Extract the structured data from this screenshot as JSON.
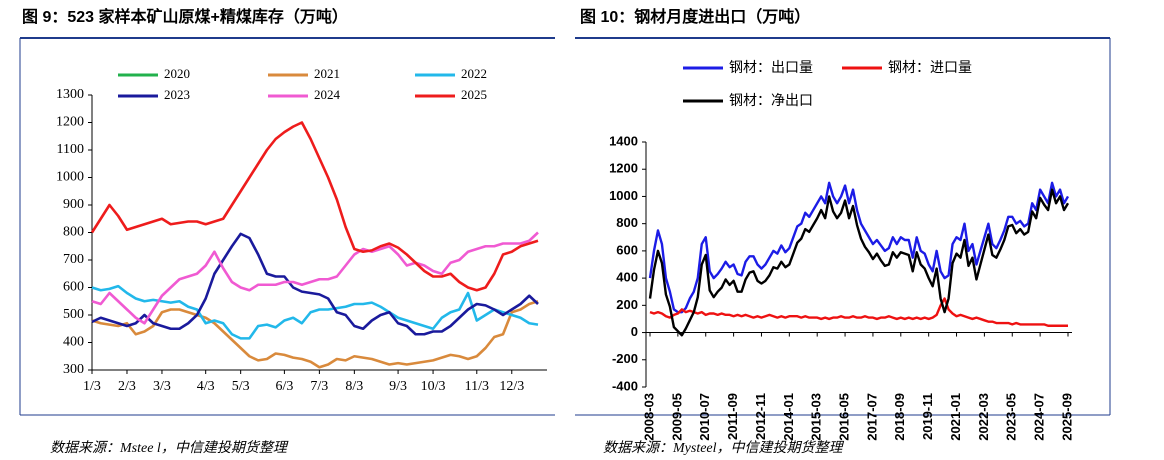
{
  "chart_data": [
    {
      "type": "line",
      "title": "图 9：523 家样本矿山原煤+精煤库存（万吨）",
      "source": "数据来源：Mstee l，中信建投期货整理",
      "categories": [
        "1/3",
        null,
        null,
        null,
        "2/3",
        null,
        null,
        null,
        "3/3",
        null,
        null,
        null,
        null,
        "4/3",
        null,
        null,
        null,
        "5/3",
        null,
        null,
        null,
        null,
        "6/3",
        null,
        null,
        null,
        "7/3",
        null,
        null,
        null,
        "8/3",
        null,
        null,
        null,
        null,
        "9/3",
        null,
        null,
        null,
        "10/3",
        null,
        null,
        null,
        null,
        "11/3",
        null,
        null,
        null,
        "12/3",
        null,
        null,
        null
      ],
      "ylim": [
        300,
        1300
      ],
      "yticks": [
        300,
        400,
        500,
        600,
        700,
        800,
        900,
        1000,
        1100,
        1200,
        1300
      ],
      "series": [
        {
          "name": "2020",
          "color": "#22b14c",
          "values": [
            null,
            null,
            null,
            null,
            null,
            null,
            null,
            null,
            null,
            null,
            null,
            null,
            null,
            null,
            null,
            null,
            null,
            null,
            null,
            null,
            null,
            null,
            null,
            null,
            null,
            null,
            null,
            null,
            null,
            null,
            null,
            null,
            null,
            null,
            null,
            null,
            null,
            null,
            null,
            null,
            null,
            null,
            null,
            null,
            null,
            null,
            null,
            null,
            null,
            null,
            null,
            null
          ]
        },
        {
          "name": "2021",
          "color": "#d98a3c",
          "values": [
            480,
            470,
            465,
            460,
            470,
            430,
            440,
            460,
            510,
            520,
            520,
            510,
            500,
            490,
            470,
            440,
            410,
            380,
            350,
            335,
            340,
            360,
            355,
            345,
            340,
            330,
            310,
            320,
            340,
            335,
            350,
            345,
            340,
            330,
            320,
            325,
            320,
            325,
            330,
            335,
            345,
            355,
            350,
            340,
            350,
            380,
            420,
            430,
            510,
            520,
            540,
            550
          ]
        },
        {
          "name": "2022",
          "color": "#22b8ea",
          "values": [
            600,
            590,
            595,
            605,
            580,
            560,
            550,
            555,
            550,
            545,
            550,
            530,
            520,
            470,
            480,
            470,
            430,
            415,
            415,
            460,
            465,
            455,
            480,
            490,
            470,
            510,
            520,
            520,
            525,
            530,
            540,
            540,
            545,
            530,
            510,
            490,
            480,
            470,
            460,
            450,
            490,
            510,
            520,
            580,
            480,
            500,
            520,
            510,
            500,
            490,
            470,
            465
          ]
        },
        {
          "name": "2023",
          "color": "#1a1a9c",
          "values": [
            475,
            490,
            480,
            470,
            460,
            470,
            500,
            470,
            460,
            450,
            450,
            470,
            500,
            560,
            650,
            700,
            750,
            795,
            780,
            720,
            650,
            640,
            640,
            600,
            585,
            580,
            575,
            560,
            510,
            500,
            460,
            450,
            480,
            500,
            510,
            470,
            460,
            430,
            430,
            440,
            440,
            460,
            490,
            520,
            540,
            535,
            520,
            500,
            520,
            540,
            570,
            540
          ]
        },
        {
          "name": "2024",
          "color": "#f05ad2",
          "values": [
            550,
            540,
            580,
            550,
            520,
            490,
            470,
            520,
            570,
            600,
            630,
            640,
            650,
            680,
            730,
            670,
            620,
            600,
            590,
            610,
            610,
            610,
            620,
            620,
            610,
            620,
            630,
            630,
            640,
            680,
            720,
            740,
            730,
            740,
            750,
            720,
            680,
            690,
            680,
            660,
            650,
            690,
            700,
            730,
            740,
            750,
            750,
            760,
            760,
            760,
            770,
            800
          ]
        },
        {
          "name": "2025",
          "color": "#ee1c1c",
          "values": [
            800,
            850,
            900,
            860,
            810,
            820,
            830,
            840,
            850,
            830,
            835,
            840,
            840,
            830,
            840,
            850,
            900,
            950,
            1000,
            1050,
            1100,
            1140,
            1165,
            1185,
            1200,
            1140,
            1070,
            1000,
            920,
            820,
            740,
            730,
            735,
            750,
            760,
            745,
            720,
            690,
            660,
            640,
            640,
            650,
            620,
            600,
            590,
            600,
            650,
            720,
            730,
            750,
            760,
            770
          ]
        }
      ]
    },
    {
      "type": "line",
      "title": "图 10：钢材月度进出口（万吨）",
      "source": "数据来源：Mysteel，中信建投期货整理",
      "categories": [
        "2008-03",
        null,
        null,
        null,
        null,
        null,
        null,
        "2009-05",
        null,
        null,
        null,
        null,
        null,
        null,
        "2010-07",
        null,
        null,
        null,
        null,
        null,
        null,
        "2011-09",
        null,
        null,
        null,
        null,
        null,
        null,
        "2012-11",
        null,
        null,
        null,
        null,
        null,
        null,
        "2014-01",
        null,
        null,
        null,
        null,
        null,
        null,
        "2015-03",
        null,
        null,
        null,
        null,
        null,
        null,
        "2016-05",
        null,
        null,
        null,
        null,
        null,
        null,
        "2017-07",
        null,
        null,
        null,
        null,
        null,
        null,
        "2018-09",
        null,
        null,
        null,
        null,
        null,
        null,
        "2019-11",
        null,
        null,
        null,
        null,
        null,
        null,
        "2021-01",
        null,
        null,
        null,
        null,
        null,
        null,
        "2022-03",
        null,
        null,
        null,
        null,
        null,
        null,
        "2023-05",
        null,
        null,
        null,
        null,
        null,
        null,
        "2024-07",
        null,
        null,
        null,
        null,
        null,
        null,
        "2025-09"
      ],
      "ylim": [
        -400,
        1400
      ],
      "yticks": [
        -400,
        -200,
        0,
        200,
        400,
        600,
        800,
        1000,
        1200,
        1400
      ],
      "series": [
        {
          "name": "钢材：出口量",
          "color": "#1c1ce6",
          "values": [
            400,
            600,
            750,
            650,
            400,
            300,
            170,
            150,
            150,
            180,
            250,
            300,
            400,
            650,
            700,
            450,
            400,
            430,
            470,
            520,
            480,
            500,
            430,
            420,
            520,
            560,
            560,
            500,
            470,
            500,
            550,
            600,
            580,
            640,
            590,
            620,
            700,
            780,
            800,
            880,
            850,
            900,
            950,
            1000,
            950,
            1100,
            1000,
            950,
            1000,
            1080,
            950,
            1050,
            900,
            800,
            750,
            700,
            650,
            680,
            640,
            600,
            620,
            700,
            650,
            700,
            680,
            680,
            550,
            700,
            600,
            580,
            500,
            450,
            600,
            450,
            400,
            420,
            650,
            700,
            680,
            800,
            600,
            650,
            500,
            600,
            700,
            800,
            650,
            620,
            680,
            750,
            850,
            850,
            800,
            820,
            780,
            800,
            950,
            900,
            1050,
            1000,
            950,
            1100,
            1000,
            1050,
            950,
            1000
          ]
        },
        {
          "name": "钢材：进口量",
          "color": "#ee1111",
          "values": [
            150,
            140,
            150,
            140,
            120,
            110,
            130,
            140,
            170,
            150,
            160,
            150,
            140,
            150,
            130,
            140,
            140,
            130,
            140,
            130,
            130,
            120,
            130,
            120,
            130,
            120,
            110,
            120,
            110,
            120,
            130,
            120,
            110,
            120,
            110,
            120,
            120,
            120,
            110,
            120,
            110,
            110,
            110,
            100,
            110,
            100,
            110,
            110,
            120,
            110,
            110,
            120,
            110,
            110,
            120,
            110,
            110,
            100,
            110,
            110,
            120,
            110,
            100,
            110,
            100,
            110,
            100,
            110,
            100,
            110,
            100,
            110,
            130,
            200,
            250,
            170,
            140,
            120,
            130,
            120,
            110,
            100,
            110,
            100,
            90,
            80,
            80,
            70,
            70,
            70,
            70,
            60,
            70,
            60,
            60,
            60,
            60,
            60,
            60,
            60,
            50,
            50,
            50,
            50,
            50,
            50
          ]
        },
        {
          "name": "钢材：净出口",
          "color": "#000000",
          "values": [
            250,
            460,
            600,
            510,
            280,
            190,
            40,
            10,
            -20,
            30,
            90,
            150,
            260,
            500,
            570,
            310,
            260,
            300,
            330,
            390,
            350,
            380,
            300,
            300,
            390,
            440,
            450,
            380,
            360,
            380,
            420,
            480,
            470,
            520,
            480,
            500,
            580,
            660,
            690,
            760,
            740,
            790,
            840,
            900,
            840,
            1000,
            890,
            840,
            880,
            970,
            840,
            930,
            790,
            690,
            630,
            590,
            540,
            580,
            530,
            490,
            500,
            590,
            550,
            590,
            580,
            570,
            450,
            590,
            500,
            470,
            400,
            340,
            470,
            250,
            150,
            250,
            510,
            580,
            550,
            680,
            490,
            550,
            390,
            500,
            610,
            720,
            570,
            550,
            610,
            680,
            780,
            790,
            730,
            760,
            720,
            740,
            890,
            840,
            990,
            940,
            900,
            1050,
            950,
            1000,
            900,
            950
          ]
        }
      ]
    }
  ]
}
